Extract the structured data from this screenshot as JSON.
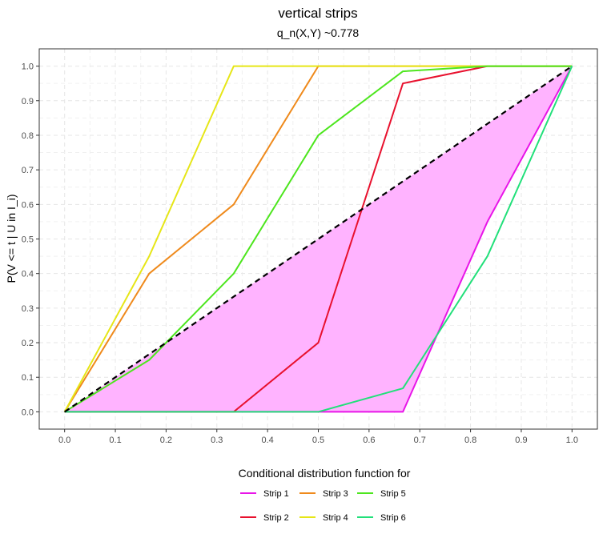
{
  "chart_data": {
    "type": "line",
    "title": "vertical strips",
    "subtitle": "q_n(X,Y) ~0.778",
    "xlabel": "",
    "ylabel": "P(V <= t | U in I_i)",
    "xlim": [
      -0.05,
      1.05
    ],
    "ylim": [
      -0.05,
      1.05
    ],
    "x_ticks": [
      "0.0",
      "0.1",
      "0.2",
      "0.3",
      "0.4",
      "0.5",
      "0.6",
      "0.7",
      "0.8",
      "0.9",
      "1.0"
    ],
    "y_ticks": [
      "0.0",
      "0.1",
      "0.2",
      "0.3",
      "0.4",
      "0.5",
      "0.6",
      "0.7",
      "0.8",
      "0.9",
      "1.0"
    ],
    "grid": true,
    "shaded_region": {
      "color": "#ffb3ff",
      "upper": [
        [
          0,
          0
        ],
        [
          1,
          1
        ]
      ],
      "lower": [
        [
          0,
          0
        ],
        [
          0.6667,
          0
        ],
        [
          0.8333,
          0.55
        ],
        [
          1,
          1
        ]
      ]
    },
    "diagonal": {
      "x": [
        0,
        1
      ],
      "y": [
        0,
        1
      ],
      "style": "dashed",
      "color": "#000000"
    },
    "x": [
      0,
      0.1667,
      0.3333,
      0.5,
      0.6667,
      0.8333,
      1
    ],
    "series": [
      {
        "name": "Strip 1",
        "color": "#e815e8",
        "values": [
          0,
          0,
          0,
          0,
          0,
          0.55,
          1
        ]
      },
      {
        "name": "Strip 2",
        "color": "#e8112e",
        "values": [
          0,
          0,
          0,
          0.2,
          0.95,
          1,
          1
        ]
      },
      {
        "name": "Strip 3",
        "color": "#ef8a1c",
        "values": [
          0,
          0.4,
          0.6,
          1,
          1,
          1,
          1
        ]
      },
      {
        "name": "Strip 4",
        "color": "#e6e617",
        "values": [
          0,
          0.45,
          1,
          1,
          1,
          1,
          1
        ]
      },
      {
        "name": "Strip 5",
        "color": "#4de61e",
        "values": [
          0,
          0.15,
          0.4,
          0.8,
          0.985,
          1,
          1
        ]
      },
      {
        "name": "Strip 6",
        "color": "#22e07a",
        "values": [
          0,
          0,
          0,
          0,
          0.068,
          0.45,
          1
        ]
      }
    ],
    "legend": {
      "title": "Conditional distribution function for",
      "position": "bottom",
      "entries": [
        "Strip 1",
        "Strip 3",
        "Strip 5",
        "Strip 2",
        "Strip 4",
        "Strip 6"
      ]
    }
  }
}
